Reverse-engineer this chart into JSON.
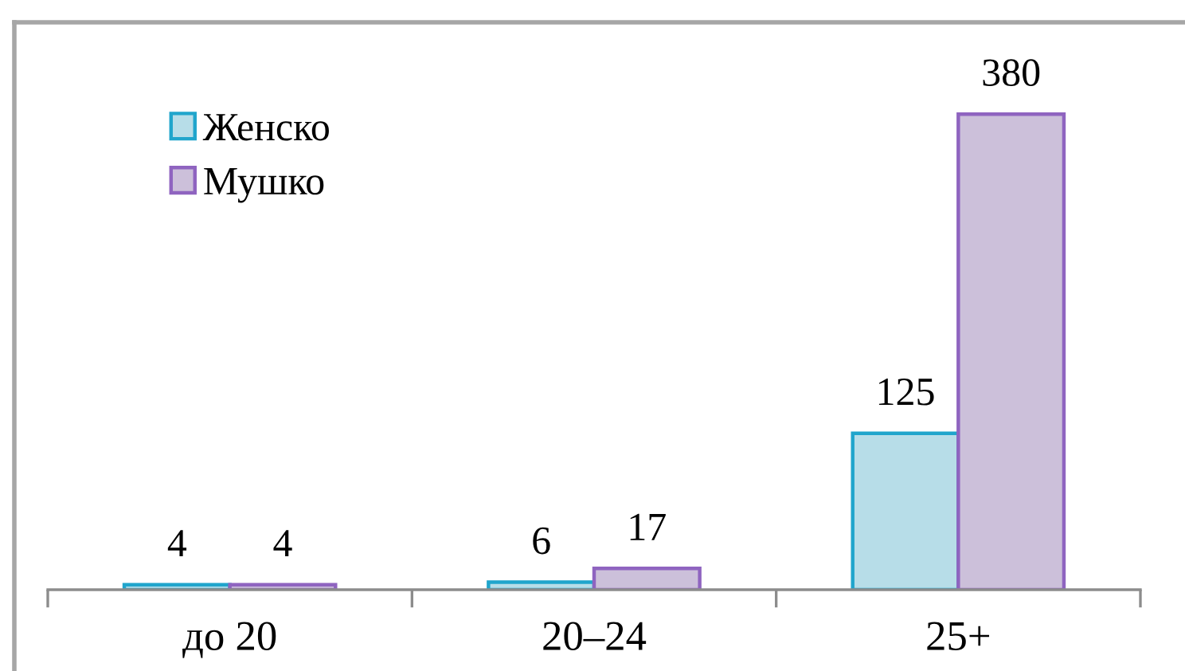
{
  "chart_data": {
    "type": "bar",
    "categories": [
      "до 20",
      "20–24",
      "25+"
    ],
    "series": [
      {
        "name": "Женско",
        "color": "#b7dde8",
        "values": [
          4,
          6,
          125
        ]
      },
      {
        "name": "Мушко",
        "color": "#ccc0da",
        "values": [
          4,
          17,
          380
        ]
      }
    ],
    "data_labels": true,
    "legend": "top left"
  }
}
